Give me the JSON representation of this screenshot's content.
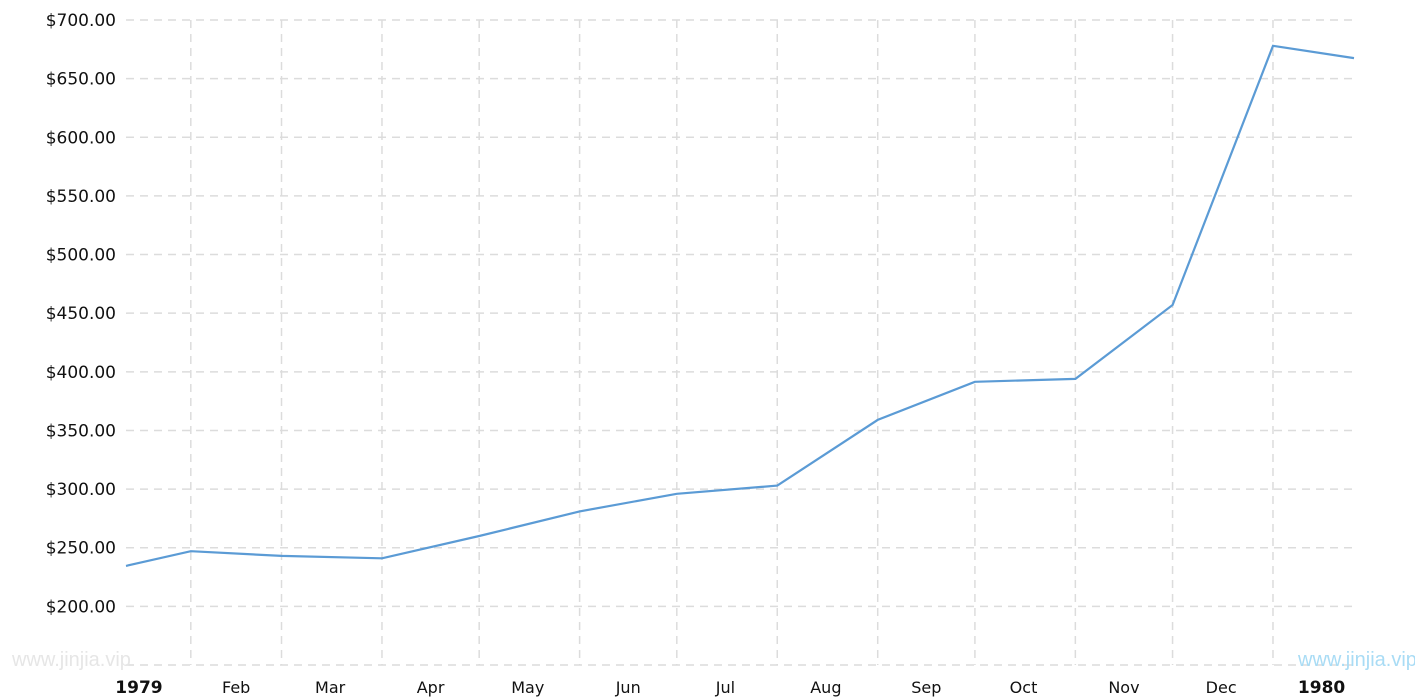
{
  "chart_data": {
    "type": "line",
    "title": "",
    "xlabel": "",
    "ylabel": "",
    "ylim": [
      150,
      700
    ],
    "yticks": [
      "$200.00",
      "$250.00",
      "$300.00",
      "$350.00",
      "$400.00",
      "$450.00",
      "$500.00",
      "$550.00",
      "$600.00",
      "$650.00",
      "$700.00"
    ],
    "ytick_values": [
      200,
      250,
      300,
      350,
      400,
      450,
      500,
      550,
      600,
      650,
      700
    ],
    "xlim": [
      "1979-01-12",
      "1980-01-26"
    ],
    "xticks": [
      {
        "label": "1979",
        "date": "1979-01-16",
        "bold": true
      },
      {
        "label": "Feb",
        "date": "1979-02-15",
        "bold": false
      },
      {
        "label": "Mar",
        "date": "1979-03-16",
        "bold": false
      },
      {
        "label": "Apr",
        "date": "1979-04-16",
        "bold": false
      },
      {
        "label": "May",
        "date": "1979-05-16",
        "bold": false
      },
      {
        "label": "Jun",
        "date": "1979-06-16",
        "bold": false
      },
      {
        "label": "Jul",
        "date": "1979-07-16",
        "bold": false
      },
      {
        "label": "Aug",
        "date": "1979-08-16",
        "bold": false
      },
      {
        "label": "Sep",
        "date": "1979-09-16",
        "bold": false
      },
      {
        "label": "Oct",
        "date": "1979-10-16",
        "bold": false
      },
      {
        "label": "Nov",
        "date": "1979-11-16",
        "bold": false
      },
      {
        "label": "Dec",
        "date": "1979-12-16",
        "bold": false
      },
      {
        "label": "1980",
        "date": "1980-01-16",
        "bold": true
      }
    ],
    "gridlines": [
      "1979-02-01",
      "1979-03-01",
      "1979-04-01",
      "1979-05-01",
      "1979-06-01",
      "1979-07-01",
      "1979-08-01",
      "1979-09-01",
      "1979-10-01",
      "1979-11-01",
      "1979-12-01",
      "1980-01-01"
    ],
    "grid": true,
    "series": [
      {
        "color": "#5b9bd5",
        "x": [
          "1979-01-12",
          "1979-02-01",
          "1979-03-01",
          "1979-04-01",
          "1979-05-01",
          "1979-06-01",
          "1979-07-01",
          "1979-08-01",
          "1979-09-01",
          "1979-10-01",
          "1979-11-01",
          "1979-12-01",
          "1980-01-01",
          "1980-01-26"
        ],
        "y": [
          234.5,
          247,
          243,
          241,
          260,
          281,
          296,
          303,
          359,
          391.5,
          394,
          457,
          678,
          667.5
        ]
      }
    ]
  },
  "watermark": {
    "left": "www.jinjia.vip",
    "right": "www.jinjia.vip"
  }
}
